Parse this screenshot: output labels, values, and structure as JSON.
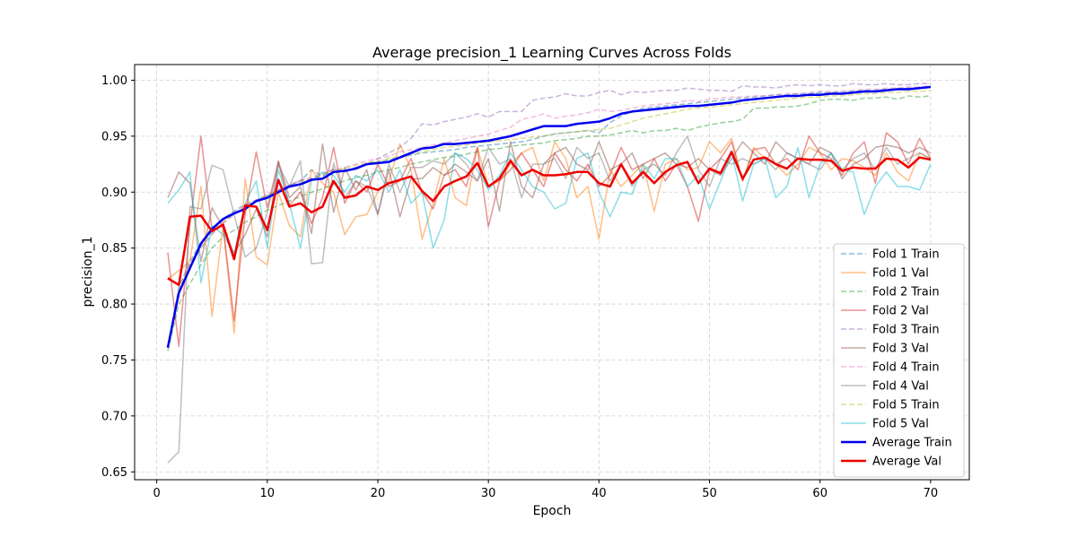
{
  "chart_data": {
    "type": "line",
    "title": "Average precision_1 Learning Curves Across Folds",
    "xlabel": "Epoch",
    "ylabel": "precision_1",
    "xlim": [
      -2,
      73.5
    ],
    "ylim": [
      0.643,
      1.014
    ],
    "xticks": [
      0,
      10,
      20,
      30,
      40,
      50,
      60,
      70
    ],
    "yticks": [
      0.65,
      0.7,
      0.75,
      0.8,
      0.85,
      0.9,
      0.95,
      1.0
    ],
    "ytick_labels": [
      "0.65",
      "0.70",
      "0.75",
      "0.80",
      "0.85",
      "0.90",
      "0.95",
      "1.00"
    ],
    "grid": true,
    "legend_position": "lower-right",
    "x": [
      1,
      2,
      3,
      4,
      5,
      6,
      7,
      8,
      9,
      10,
      11,
      12,
      13,
      14,
      15,
      16,
      17,
      18,
      19,
      20,
      21,
      22,
      23,
      24,
      25,
      26,
      27,
      28,
      29,
      30,
      31,
      32,
      33,
      34,
      35,
      36,
      37,
      38,
      39,
      40,
      41,
      42,
      43,
      44,
      45,
      46,
      47,
      48,
      49,
      50,
      51,
      52,
      53,
      54,
      55,
      56,
      57,
      58,
      59,
      60,
      61,
      62,
      63,
      64,
      65,
      66,
      67,
      68,
      69,
      70
    ],
    "series": [
      {
        "name": "Fold 1 Train",
        "color": "#1f77b4",
        "dash": true,
        "width": 1.5,
        "opacity": 0.5,
        "values": [
          0.762,
          0.815,
          0.838,
          0.855,
          0.868,
          0.876,
          0.883,
          0.889,
          0.893,
          0.897,
          0.902,
          0.906,
          0.91,
          0.92,
          0.914,
          0.921,
          0.918,
          0.922,
          0.925,
          0.927,
          0.929,
          0.931,
          0.933,
          0.935,
          0.936,
          0.937,
          0.938,
          0.94,
          0.941,
          0.942,
          0.943,
          0.944,
          0.945,
          0.947,
          0.95,
          0.952,
          0.953,
          0.954,
          0.955,
          0.953,
          0.962,
          0.968,
          0.972,
          0.975,
          0.976,
          0.977,
          0.978,
          0.979,
          0.98,
          0.981,
          0.982,
          0.983,
          0.984,
          0.985,
          0.986,
          0.987,
          0.987,
          0.988,
          0.988,
          0.989,
          0.989,
          0.99,
          0.99,
          0.991,
          0.991,
          0.992,
          0.992,
          0.993,
          0.993,
          0.994
        ]
      },
      {
        "name": "Fold 1 Val",
        "color": "#ff7f0e",
        "dash": false,
        "width": 1.5,
        "opacity": 0.5,
        "values": [
          0.822,
          0.83,
          0.838,
          0.905,
          0.789,
          0.87,
          0.774,
          0.912,
          0.842,
          0.835,
          0.9,
          0.87,
          0.86,
          0.92,
          0.908,
          0.9,
          0.862,
          0.878,
          0.88,
          0.9,
          0.91,
          0.943,
          0.92,
          0.858,
          0.89,
          0.93,
          0.895,
          0.888,
          0.94,
          0.905,
          0.91,
          0.925,
          0.935,
          0.94,
          0.91,
          0.945,
          0.93,
          0.895,
          0.905,
          0.858,
          0.92,
          0.905,
          0.915,
          0.925,
          0.883,
          0.925,
          0.93,
          0.92,
          0.922,
          0.945,
          0.935,
          0.948,
          0.91,
          0.94,
          0.93,
          0.925,
          0.915,
          0.925,
          0.94,
          0.935,
          0.92,
          0.93,
          0.928,
          0.922,
          0.915,
          0.935,
          0.918,
          0.91,
          0.935,
          0.93
        ]
      },
      {
        "name": "Fold 2 Train",
        "color": "#2ca02c",
        "dash": true,
        "width": 1.5,
        "opacity": 0.5,
        "values": [
          0.758,
          0.8,
          0.818,
          0.835,
          0.85,
          0.86,
          0.866,
          0.873,
          0.878,
          0.884,
          0.888,
          0.892,
          0.896,
          0.9,
          0.903,
          0.907,
          0.91,
          0.913,
          0.915,
          0.918,
          0.92,
          0.922,
          0.925,
          0.927,
          0.929,
          0.931,
          0.932,
          0.934,
          0.936,
          0.938,
          0.939,
          0.941,
          0.942,
          0.943,
          0.944,
          0.946,
          0.947,
          0.948,
          0.95,
          0.95,
          0.951,
          0.953,
          0.955,
          0.953,
          0.955,
          0.955,
          0.957,
          0.955,
          0.958,
          0.96,
          0.962,
          0.963,
          0.965,
          0.975,
          0.975,
          0.976,
          0.976,
          0.977,
          0.979,
          0.982,
          0.983,
          0.983,
          0.982,
          0.984,
          0.984,
          0.985,
          0.983,
          0.986,
          0.985,
          0.986
        ]
      },
      {
        "name": "Fold 2 Val",
        "color": "#d62728",
        "dash": false,
        "width": 1.5,
        "opacity": 0.5,
        "values": [
          0.846,
          0.762,
          0.87,
          0.95,
          0.866,
          0.87,
          0.785,
          0.88,
          0.936,
          0.886,
          0.927,
          0.888,
          0.9,
          0.872,
          0.895,
          0.94,
          0.89,
          0.91,
          0.9,
          0.925,
          0.905,
          0.91,
          0.93,
          0.9,
          0.885,
          0.915,
          0.92,
          0.905,
          0.94,
          0.869,
          0.91,
          0.92,
          0.935,
          0.92,
          0.905,
          0.935,
          0.92,
          0.91,
          0.925,
          0.905,
          0.915,
          0.94,
          0.92,
          0.925,
          0.93,
          0.91,
          0.925,
          0.905,
          0.874,
          0.92,
          0.93,
          0.945,
          0.91,
          0.938,
          0.94,
          0.925,
          0.93,
          0.92,
          0.95,
          0.935,
          0.93,
          0.915,
          0.935,
          0.945,
          0.908,
          0.953,
          0.945,
          0.925,
          0.948,
          0.93
        ]
      },
      {
        "name": "Fold 3 Train",
        "color": "#9467bd",
        "dash": true,
        "width": 1.5,
        "opacity": 0.5,
        "values": [
          0.762,
          0.81,
          0.832,
          0.85,
          0.862,
          0.872,
          0.88,
          0.886,
          0.892,
          0.897,
          0.902,
          0.906,
          0.911,
          0.912,
          0.915,
          0.92,
          0.918,
          0.922,
          0.925,
          0.93,
          0.935,
          0.94,
          0.948,
          0.961,
          0.96,
          0.963,
          0.965,
          0.967,
          0.97,
          0.967,
          0.972,
          0.972,
          0.972,
          0.982,
          0.984,
          0.985,
          0.988,
          0.986,
          0.986,
          0.989,
          0.991,
          0.987,
          0.99,
          0.989,
          0.99,
          0.991,
          0.991,
          0.993,
          0.992,
          0.991,
          0.991,
          0.99,
          0.995,
          0.994,
          0.994,
          0.993,
          0.995,
          0.996,
          0.995,
          0.996,
          0.995,
          0.995,
          0.997,
          0.996,
          0.996,
          0.997,
          0.996,
          0.996,
          0.997,
          0.997
        ]
      },
      {
        "name": "Fold 3 Val",
        "color": "#8c564b",
        "dash": false,
        "width": 1.5,
        "opacity": 0.5,
        "values": [
          0.895,
          0.918,
          0.908,
          0.838,
          0.886,
          0.868,
          0.845,
          0.862,
          0.885,
          0.86,
          0.928,
          0.895,
          0.905,
          0.863,
          0.943,
          0.882,
          0.922,
          0.902,
          0.92,
          0.88,
          0.92,
          0.878,
          0.912,
          0.912,
          0.922,
          0.915,
          0.925,
          0.918,
          0.91,
          0.93,
          0.883,
          0.945,
          0.905,
          0.895,
          0.925,
          0.935,
          0.94,
          0.925,
          0.92,
          0.945,
          0.92,
          0.925,
          0.935,
          0.912,
          0.93,
          0.935,
          0.925,
          0.922,
          0.93,
          0.92,
          0.915,
          0.93,
          0.945,
          0.935,
          0.925,
          0.945,
          0.935,
          0.93,
          0.925,
          0.94,
          0.935,
          0.912,
          0.925,
          0.93,
          0.94,
          0.942,
          0.94,
          0.935,
          0.94,
          0.935
        ]
      },
      {
        "name": "Fold 4 Train",
        "color": "#e377c2",
        "dash": true,
        "width": 1.5,
        "opacity": 0.5,
        "values": [
          0.762,
          0.812,
          0.835,
          0.852,
          0.864,
          0.874,
          0.882,
          0.888,
          0.893,
          0.898,
          0.902,
          0.906,
          0.91,
          0.913,
          0.917,
          0.92,
          0.922,
          0.925,
          0.928,
          0.93,
          0.932,
          0.936,
          0.938,
          0.94,
          0.942,
          0.944,
          0.946,
          0.948,
          0.95,
          0.952,
          0.955,
          0.958,
          0.965,
          0.967,
          0.97,
          0.966,
          0.968,
          0.969,
          0.971,
          0.974,
          0.972,
          0.973,
          0.975,
          0.977,
          0.978,
          0.979,
          0.98,
          0.982,
          0.981,
          0.983,
          0.984,
          0.985,
          0.985,
          0.986,
          0.986,
          0.987,
          0.988,
          0.988,
          0.989,
          0.99,
          0.99,
          0.99,
          0.991,
          0.992,
          0.992,
          0.993,
          0.993,
          0.994,
          0.994,
          0.995
        ]
      },
      {
        "name": "Fold 4 Val",
        "color": "#7f7f7f",
        "dash": false,
        "width": 1.5,
        "opacity": 0.5,
        "values": [
          0.658,
          0.668,
          0.887,
          0.885,
          0.924,
          0.92,
          0.88,
          0.842,
          0.85,
          0.882,
          0.924,
          0.905,
          0.928,
          0.836,
          0.837,
          0.926,
          0.895,
          0.91,
          0.905,
          0.88,
          0.925,
          0.9,
          0.922,
          0.922,
          0.928,
          0.925,
          0.935,
          0.925,
          0.91,
          0.94,
          0.925,
          0.93,
          0.895,
          0.925,
          0.925,
          0.93,
          0.912,
          0.94,
          0.93,
          0.935,
          0.91,
          0.925,
          0.905,
          0.92,
          0.925,
          0.915,
          0.935,
          0.95,
          0.92,
          0.905,
          0.93,
          0.925,
          0.93,
          0.925,
          0.93,
          0.92,
          0.935,
          0.93,
          0.925,
          0.92,
          0.935,
          0.92,
          0.93,
          0.935,
          0.92,
          0.94,
          0.925,
          0.93,
          0.935,
          0.93
        ]
      },
      {
        "name": "Fold 5 Train",
        "color": "#bcbd22",
        "dash": true,
        "width": 1.5,
        "opacity": 0.5,
        "values": [
          0.762,
          0.812,
          0.836,
          0.852,
          0.864,
          0.873,
          0.881,
          0.887,
          0.892,
          0.897,
          0.901,
          0.905,
          0.909,
          0.912,
          0.916,
          0.919,
          0.921,
          0.924,
          0.926,
          0.928,
          0.93,
          0.932,
          0.934,
          0.936,
          0.938,
          0.94,
          0.941,
          0.942,
          0.944,
          0.945,
          0.946,
          0.947,
          0.948,
          0.949,
          0.95,
          0.952,
          0.953,
          0.954,
          0.955,
          0.956,
          0.957,
          0.96,
          0.963,
          0.966,
          0.968,
          0.97,
          0.972,
          0.974,
          0.975,
          0.976,
          0.977,
          0.978,
          0.979,
          0.98,
          0.981,
          0.982,
          0.983,
          0.984,
          0.985,
          0.985,
          0.986,
          0.986,
          0.987,
          0.988,
          0.988,
          0.989,
          0.989,
          0.99,
          0.99,
          0.991
        ]
      },
      {
        "name": "Fold 5 Val",
        "color": "#17becf",
        "dash": false,
        "width": 1.5,
        "opacity": 0.5,
        "values": [
          0.89,
          0.902,
          0.918,
          0.819,
          0.87,
          0.862,
          0.845,
          0.89,
          0.91,
          0.85,
          0.92,
          0.89,
          0.85,
          0.91,
          0.918,
          0.915,
          0.9,
          0.915,
          0.91,
          0.92,
          0.9,
          0.92,
          0.89,
          0.9,
          0.85,
          0.875,
          0.935,
          0.93,
          0.92,
          0.902,
          0.915,
          0.935,
          0.92,
          0.905,
          0.9,
          0.885,
          0.89,
          0.93,
          0.935,
          0.9,
          0.878,
          0.9,
          0.898,
          0.925,
          0.912,
          0.93,
          0.93,
          0.905,
          0.915,
          0.885,
          0.91,
          0.935,
          0.892,
          0.925,
          0.93,
          0.895,
          0.905,
          0.94,
          0.895,
          0.925,
          0.935,
          0.92,
          0.918,
          0.88,
          0.905,
          0.918,
          0.905,
          0.905,
          0.902,
          0.925
        ]
      },
      {
        "name": "Average Train",
        "color": "#0000ee",
        "dash": false,
        "width": 2.5,
        "opacity": 1,
        "values": [
          0.761,
          0.81,
          0.832,
          0.854,
          0.867,
          0.876,
          0.881,
          0.885,
          0.892,
          0.895,
          0.9,
          0.905,
          0.907,
          0.911,
          0.912,
          0.918,
          0.919,
          0.921,
          0.925,
          0.926,
          0.927,
          0.931,
          0.935,
          0.939,
          0.94,
          0.943,
          0.943,
          0.944,
          0.945,
          0.946,
          0.948,
          0.95,
          0.953,
          0.956,
          0.959,
          0.959,
          0.959,
          0.961,
          0.962,
          0.963,
          0.966,
          0.97,
          0.972,
          0.973,
          0.974,
          0.975,
          0.976,
          0.977,
          0.977,
          0.978,
          0.979,
          0.98,
          0.982,
          0.983,
          0.984,
          0.985,
          0.986,
          0.986,
          0.987,
          0.987,
          0.988,
          0.988,
          0.989,
          0.99,
          0.99,
          0.991,
          0.992,
          0.992,
          0.993,
          0.994
        ]
      },
      {
        "name": "Average Val",
        "color": "#ee0000",
        "dash": false,
        "width": 2.5,
        "opacity": 1,
        "values": [
          0.823,
          0.817,
          0.878,
          0.879,
          0.865,
          0.871,
          0.84,
          0.888,
          0.887,
          0.866,
          0.911,
          0.887,
          0.89,
          0.882,
          0.887,
          0.91,
          0.895,
          0.897,
          0.905,
          0.902,
          0.908,
          0.911,
          0.914,
          0.901,
          0.892,
          0.905,
          0.91,
          0.914,
          0.926,
          0.905,
          0.912,
          0.928,
          0.915,
          0.92,
          0.915,
          0.915,
          0.916,
          0.918,
          0.918,
          0.908,
          0.905,
          0.925,
          0.908,
          0.918,
          0.908,
          0.918,
          0.924,
          0.927,
          0.908,
          0.921,
          0.917,
          0.936,
          0.912,
          0.929,
          0.931,
          0.925,
          0.921,
          0.93,
          0.929,
          0.929,
          0.928,
          0.919,
          0.922,
          0.921,
          0.921,
          0.93,
          0.929,
          0.922,
          0.931,
          0.929
        ]
      }
    ]
  }
}
